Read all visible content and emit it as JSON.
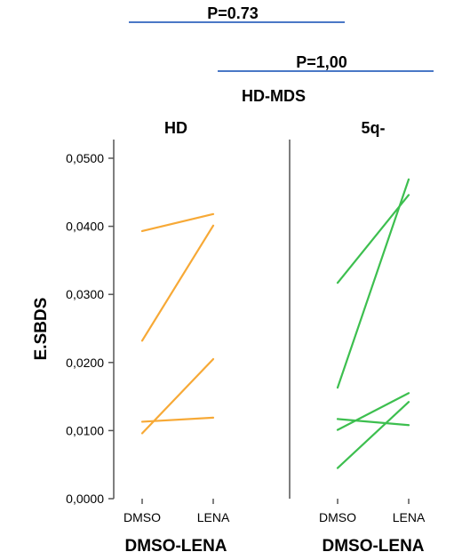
{
  "chart_data": {
    "type": "line",
    "title": "HD-MDS",
    "ylabel": "E.SBDS",
    "ylim": [
      0,
      0.05
    ],
    "yticks": [
      "0,0000",
      "0,0100",
      "0,0200",
      "0,0300",
      "0,0400",
      "0,0500"
    ],
    "ytick_values": [
      0,
      0.01,
      0.02,
      0.03,
      0.04,
      0.05
    ],
    "categories": [
      "DMSO",
      "LENA"
    ],
    "comparisons": [
      {
        "label": "P=0.73",
        "span": "wide"
      },
      {
        "label": "P=1,00",
        "span": "right"
      }
    ],
    "panels": [
      {
        "name": "HD",
        "xlabel": "DMSO-LENA",
        "color": "#f7a936",
        "series": [
          {
            "values": [
              0.0393,
              0.0418
            ]
          },
          {
            "values": [
              0.0232,
              0.0401
            ]
          },
          {
            "values": [
              0.0096,
              0.0205
            ]
          },
          {
            "values": [
              0.0113,
              0.0119
            ]
          }
        ]
      },
      {
        "name": "5q-",
        "xlabel": "DMSO-LENA",
        "color": "#3dbf4f",
        "series": [
          {
            "values": [
              0.0317,
              0.0446
            ]
          },
          {
            "values": [
              0.0163,
              0.0469
            ]
          },
          {
            "values": [
              0.0117,
              0.0108
            ]
          },
          {
            "values": [
              0.0101,
              0.0155
            ]
          },
          {
            "values": [
              0.0045,
              0.0142
            ]
          }
        ]
      }
    ]
  }
}
